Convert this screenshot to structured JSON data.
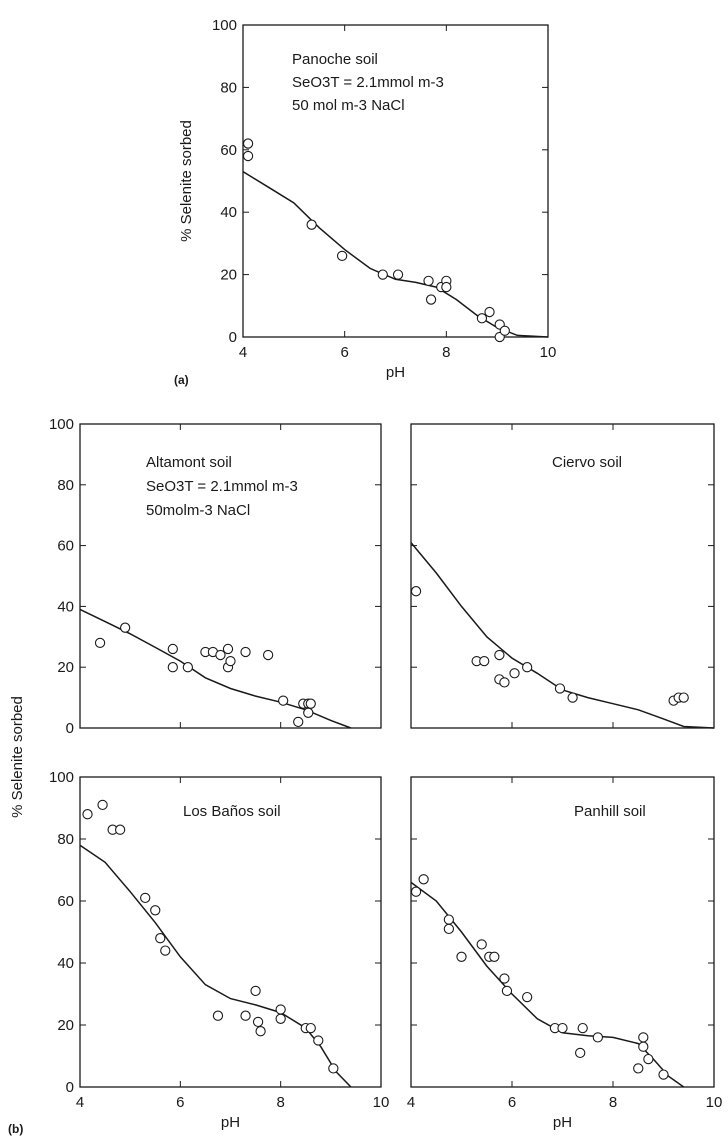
{
  "chart_data": [
    {
      "id": "a",
      "type": "scatter",
      "panel_tag": "(a)",
      "xlabel": "pH",
      "ylabel": "% Selenite sorbed",
      "xlim": [
        4,
        10
      ],
      "ylim": [
        0,
        100
      ],
      "xticks": [
        4,
        6,
        8,
        10
      ],
      "yticks": [
        0,
        20,
        40,
        60,
        80,
        100
      ],
      "annotation": [
        "Panoche soil",
        "SeO3T = 2.1mmol m-3",
        "50 mol m-3  NaCl"
      ],
      "points": [
        [
          4.1,
          62
        ],
        [
          4.1,
          58
        ],
        [
          5.35,
          36
        ],
        [
          5.95,
          26
        ],
        [
          6.75,
          20
        ],
        [
          7.05,
          20
        ],
        [
          7.65,
          18
        ],
        [
          7.7,
          12
        ],
        [
          7.9,
          16
        ],
        [
          8.0,
          18
        ],
        [
          8.0,
          16
        ],
        [
          8.7,
          6
        ],
        [
          8.85,
          8
        ],
        [
          9.05,
          4
        ],
        [
          9.05,
          0
        ],
        [
          9.15,
          2
        ]
      ],
      "curve": [
        [
          4.0,
          53
        ],
        [
          4.5,
          48
        ],
        [
          5.0,
          43
        ],
        [
          5.5,
          35
        ],
        [
          6.0,
          28
        ],
        [
          6.5,
          22
        ],
        [
          7.0,
          18.5
        ],
        [
          7.4,
          17.5
        ],
        [
          7.8,
          16
        ],
        [
          8.2,
          12
        ],
        [
          8.6,
          7
        ],
        [
          9.0,
          3
        ],
        [
          9.4,
          0.5
        ],
        [
          10.0,
          0
        ]
      ]
    },
    {
      "id": "altamont",
      "type": "scatter",
      "xlim": [
        4,
        10
      ],
      "ylim": [
        0,
        100
      ],
      "yticks": [
        0,
        20,
        40,
        60,
        80,
        100
      ],
      "ylabel_shared": "% Selenite sorbed",
      "annotation": [
        "Altamont soil",
        "SeO3T = 2.1mmol m-3",
        "50molm-3 NaCl"
      ],
      "points": [
        [
          4.4,
          28
        ],
        [
          4.9,
          33
        ],
        [
          5.85,
          26
        ],
        [
          5.85,
          20
        ],
        [
          6.15,
          20
        ],
        [
          6.5,
          25
        ],
        [
          6.65,
          25
        ],
        [
          6.8,
          24
        ],
        [
          6.95,
          26
        ],
        [
          6.95,
          20
        ],
        [
          7.0,
          22
        ],
        [
          7.3,
          25
        ],
        [
          7.75,
          24
        ],
        [
          8.05,
          9
        ],
        [
          8.35,
          2
        ],
        [
          8.45,
          8
        ],
        [
          8.55,
          8
        ],
        [
          8.55,
          5
        ],
        [
          8.6,
          8
        ]
      ],
      "curve": [
        [
          4.0,
          39
        ],
        [
          4.5,
          35
        ],
        [
          5.0,
          31
        ],
        [
          5.5,
          26.5
        ],
        [
          6.0,
          22
        ],
        [
          6.5,
          16.5
        ],
        [
          7.0,
          13
        ],
        [
          7.5,
          10.5
        ],
        [
          8.0,
          8.5
        ],
        [
          8.5,
          6
        ],
        [
          9.0,
          2.5
        ],
        [
          9.4,
          0
        ]
      ]
    },
    {
      "id": "ciervo",
      "type": "scatter",
      "xlim": [
        4,
        10
      ],
      "ylim": [
        0,
        100
      ],
      "annotation": [
        "Ciervo soil"
      ],
      "points": [
        [
          4.1,
          45
        ],
        [
          5.3,
          22
        ],
        [
          5.45,
          22
        ],
        [
          5.75,
          24
        ],
        [
          5.75,
          16
        ],
        [
          5.85,
          15
        ],
        [
          6.05,
          18
        ],
        [
          6.3,
          20
        ],
        [
          6.95,
          13
        ],
        [
          7.2,
          10
        ],
        [
          9.2,
          9
        ],
        [
          9.3,
          10
        ],
        [
          9.4,
          10
        ]
      ],
      "curve": [
        [
          4.0,
          61
        ],
        [
          4.5,
          51
        ],
        [
          5.0,
          40
        ],
        [
          5.5,
          30
        ],
        [
          6.0,
          23
        ],
        [
          6.5,
          18
        ],
        [
          7.0,
          12.5
        ],
        [
          7.5,
          10
        ],
        [
          8.0,
          8
        ],
        [
          8.5,
          6
        ],
        [
          9.0,
          3
        ],
        [
          9.4,
          0.5
        ],
        [
          10.0,
          0
        ]
      ]
    },
    {
      "id": "losbanos",
      "type": "scatter",
      "xlabel": "pH",
      "panel_tag": "(b)",
      "xlim": [
        4,
        10
      ],
      "ylim": [
        0,
        100
      ],
      "xticks": [
        4,
        6,
        8,
        10
      ],
      "yticks": [
        0,
        20,
        40,
        60,
        80,
        100
      ],
      "annotation": [
        "Los Baños soil"
      ],
      "points": [
        [
          4.15,
          88
        ],
        [
          4.45,
          91
        ],
        [
          4.65,
          83
        ],
        [
          4.8,
          83
        ],
        [
          5.3,
          61
        ],
        [
          5.5,
          57
        ],
        [
          5.6,
          48
        ],
        [
          5.7,
          44
        ],
        [
          6.75,
          23
        ],
        [
          7.3,
          23
        ],
        [
          7.5,
          31
        ],
        [
          7.55,
          21
        ],
        [
          7.6,
          18
        ],
        [
          8.0,
          25
        ],
        [
          8.0,
          22
        ],
        [
          8.5,
          19
        ],
        [
          8.6,
          19
        ],
        [
          8.75,
          15
        ],
        [
          9.05,
          6
        ]
      ],
      "curve": [
        [
          4.0,
          78
        ],
        [
          4.5,
          72.5
        ],
        [
          5.0,
          63
        ],
        [
          5.5,
          53
        ],
        [
          6.0,
          42
        ],
        [
          6.5,
          33
        ],
        [
          7.0,
          28.5
        ],
        [
          7.5,
          26.5
        ],
        [
          8.0,
          24
        ],
        [
          8.5,
          19
        ],
        [
          8.8,
          13
        ],
        [
          9.1,
          5
        ],
        [
          9.4,
          0
        ]
      ]
    },
    {
      "id": "panhill",
      "type": "scatter",
      "xlabel": "pH",
      "xlim": [
        4,
        10
      ],
      "ylim": [
        0,
        100
      ],
      "xticks": [
        4,
        6,
        8,
        10
      ],
      "annotation": [
        "Panhill soil"
      ],
      "points": [
        [
          4.1,
          63
        ],
        [
          4.25,
          67
        ],
        [
          4.75,
          54
        ],
        [
          4.75,
          51
        ],
        [
          5.0,
          42
        ],
        [
          5.4,
          46
        ],
        [
          5.55,
          42
        ],
        [
          5.65,
          42
        ],
        [
          5.85,
          35
        ],
        [
          5.9,
          31
        ],
        [
          6.3,
          29
        ],
        [
          6.85,
          19
        ],
        [
          7.0,
          19
        ],
        [
          7.35,
          11
        ],
        [
          7.4,
          19
        ],
        [
          7.7,
          16
        ],
        [
          8.5,
          6
        ],
        [
          8.6,
          16
        ],
        [
          8.6,
          13
        ],
        [
          8.7,
          9
        ],
        [
          9.0,
          4
        ]
      ],
      "curve": [
        [
          4.0,
          66
        ],
        [
          4.5,
          60
        ],
        [
          5.0,
          50
        ],
        [
          5.5,
          39
        ],
        [
          6.0,
          30
        ],
        [
          6.5,
          22
        ],
        [
          7.0,
          17.5
        ],
        [
          7.5,
          16.5
        ],
        [
          8.0,
          16
        ],
        [
          8.5,
          14
        ],
        [
          8.8,
          9
        ],
        [
          9.1,
          3.5
        ],
        [
          9.4,
          0
        ]
      ]
    }
  ]
}
